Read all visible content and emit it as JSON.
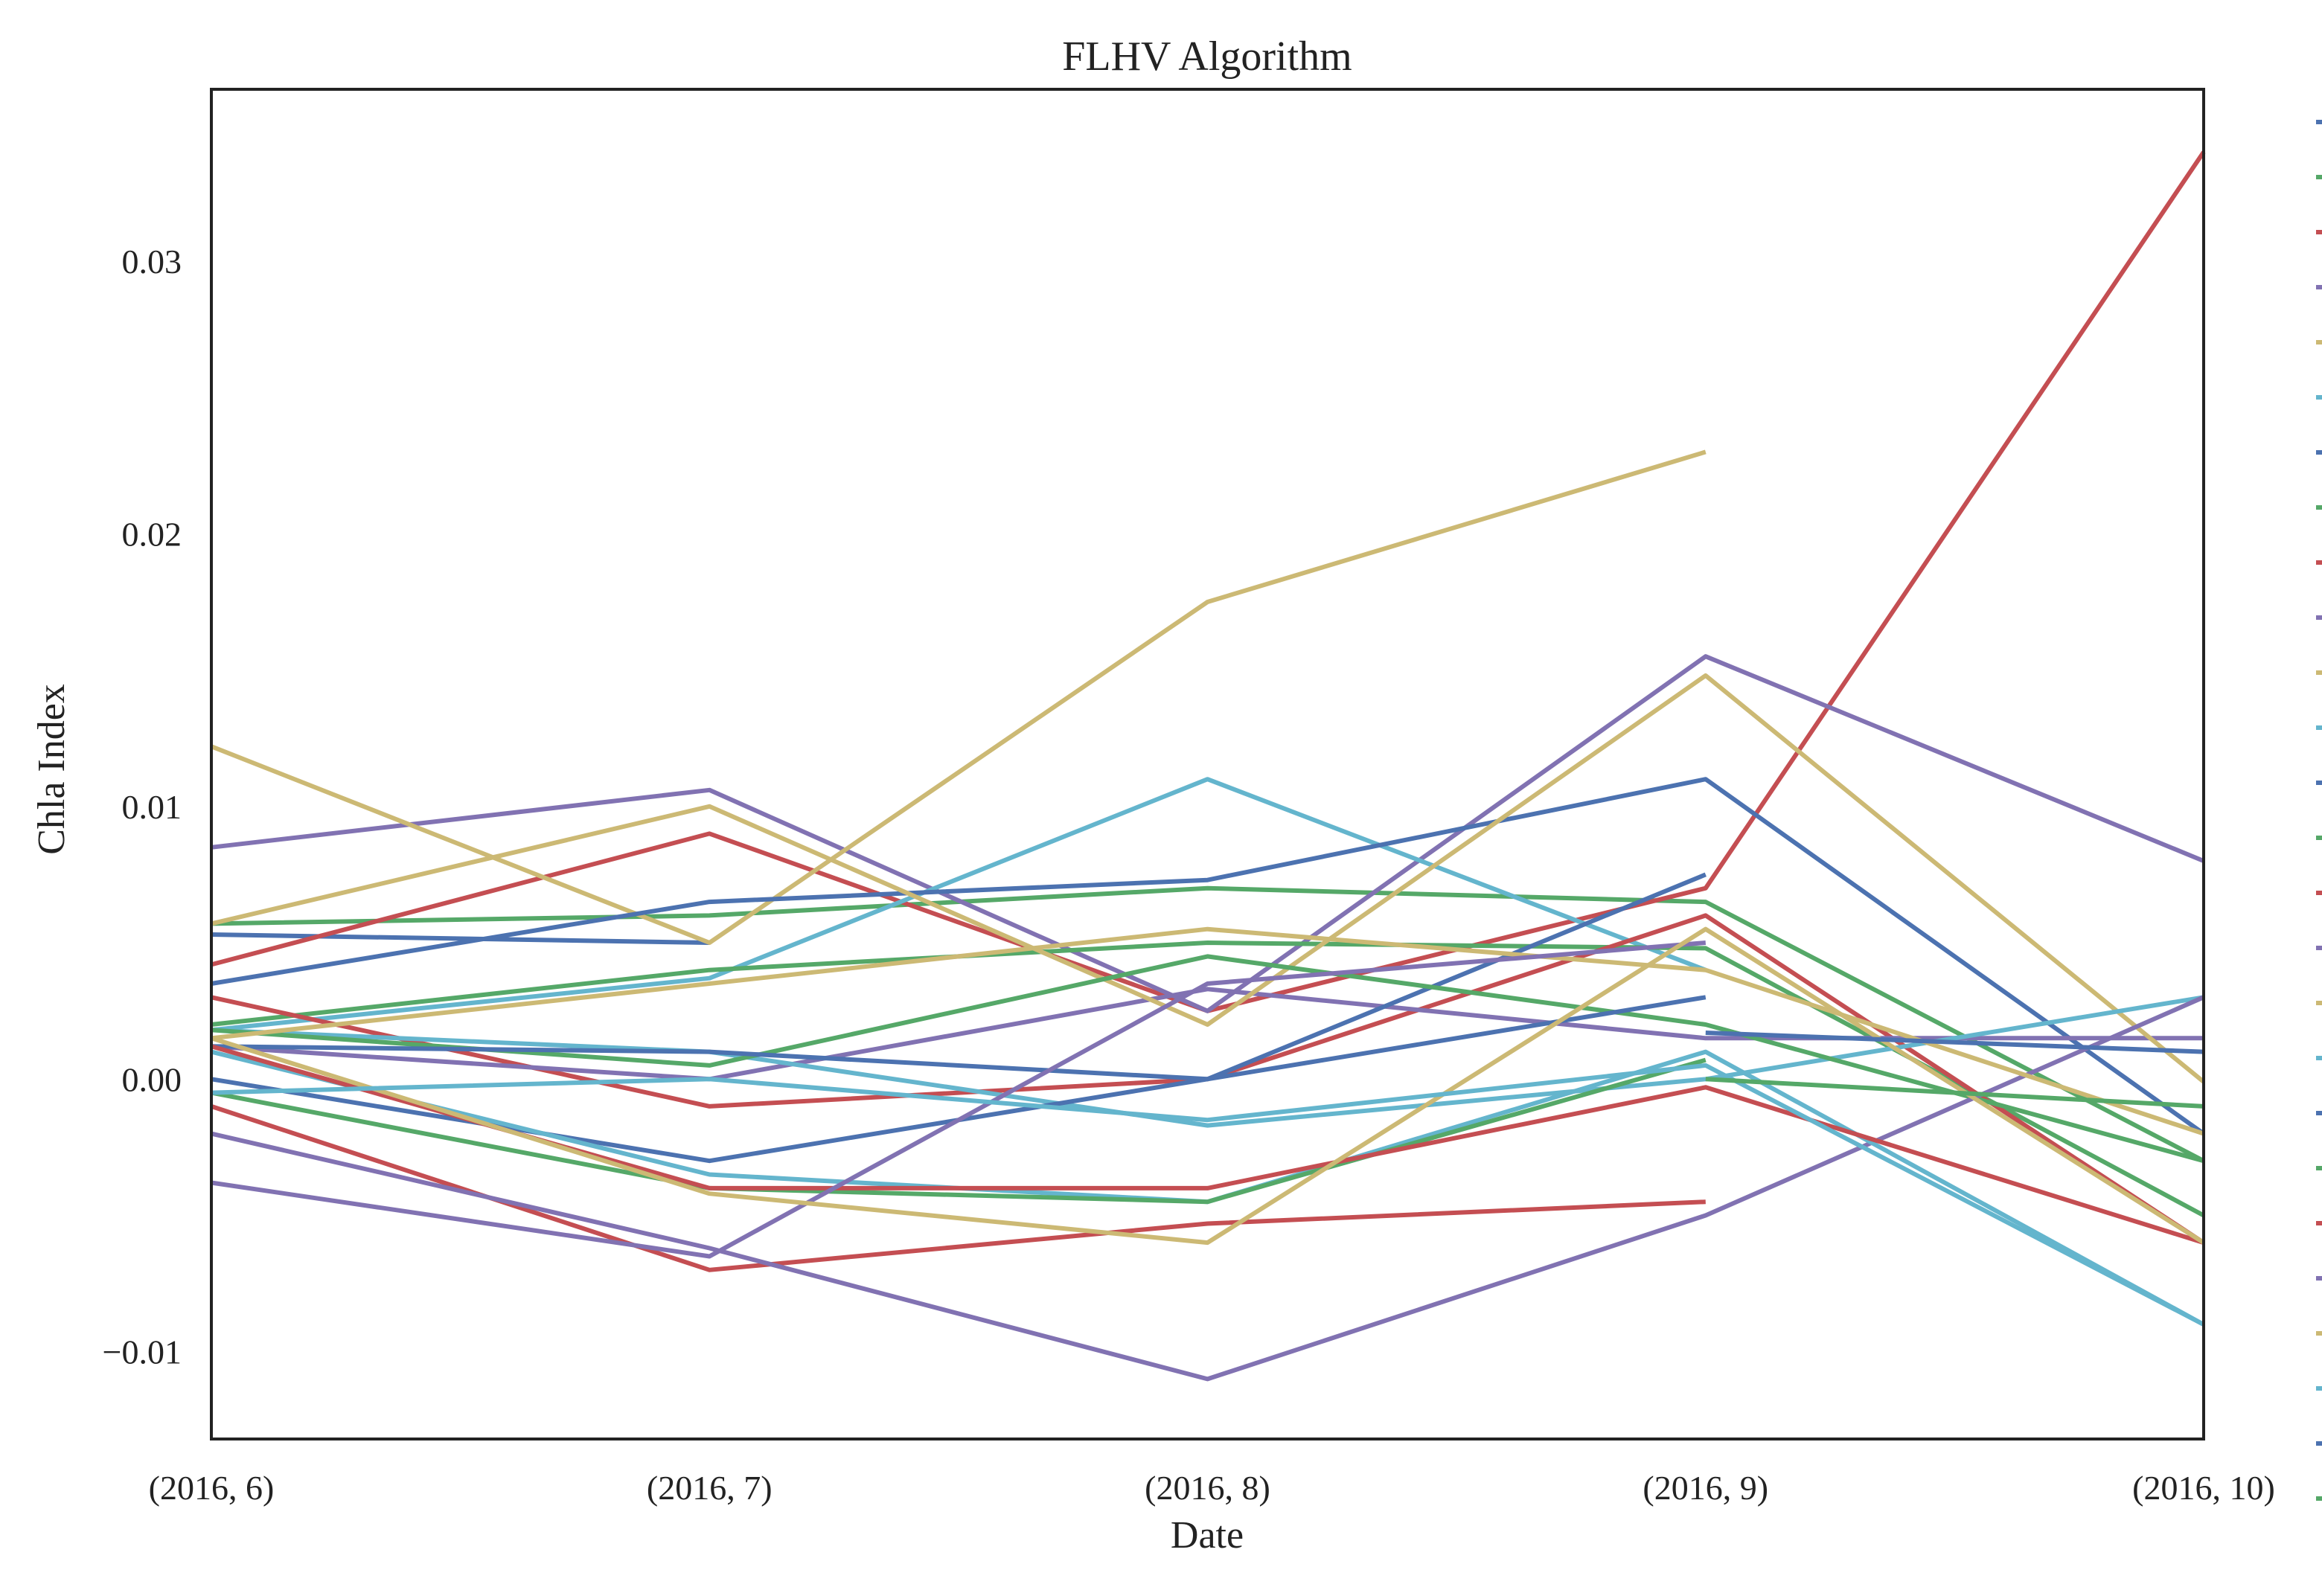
{
  "chart_data": {
    "type": "line",
    "title": "FLHV Algorithm",
    "xlabel": "Date",
    "ylabel": "Chla Index",
    "categories": [
      "(2016, 6)",
      "(2016, 7)",
      "(2016, 8)",
      "(2016, 9)",
      "(2016, 10)"
    ],
    "ylim": [
      -0.0132,
      0.0363
    ],
    "yticks": [
      -0.01,
      0.0,
      0.01,
      0.02,
      0.03
    ],
    "ytick_labels": [
      "−0.01",
      "0.00",
      "0.01",
      "0.02",
      "0.03"
    ],
    "grid": false,
    "legend": "right (series names cut off)",
    "palette": [
      "#4c72b0",
      "#55a868",
      "#c44e52",
      "#8172b2",
      "#ccb974",
      "#64b5cd"
    ],
    "series": [
      {
        "values": [
          0.0053,
          0.005,
          null,
          null,
          null
        ]
      },
      {
        "values": [
          0.0057,
          0.006,
          0.007,
          0.0065,
          -0.003
        ]
      },
      {
        "values": [
          0.0042,
          0.009,
          0.0025,
          0.007,
          0.034
        ]
      },
      {
        "values": [
          0.0085,
          0.0106,
          0.0025,
          0.0155,
          0.008
        ]
      },
      {
        "values": [
          0.0122,
          0.005,
          0.0175,
          0.023,
          null
        ]
      },
      {
        "values": [
          0.0018,
          0.0037,
          0.011,
          0.004,
          null
        ]
      },
      {
        "values": [
          0.0035,
          0.0065,
          0.0073,
          0.011,
          -0.002
        ]
      },
      {
        "values": [
          0.002,
          0.004,
          0.005,
          0.0048,
          -0.005
        ]
      },
      {
        "values": [
          0.003,
          -0.001,
          0.0,
          0.006,
          -0.006
        ]
      },
      {
        "values": [
          0.0012,
          0.0,
          0.0033,
          0.0015,
          0.0015
        ]
      },
      {
        "values": [
          0.0057,
          0.01,
          0.002,
          0.0148,
          -0.0001
        ]
      },
      {
        "values": [
          0.0018,
          0.001,
          -0.0017,
          0.0,
          0.003
        ]
      },
      {
        "values": [
          0.0,
          -0.003,
          0.0,
          0.0075,
          null
        ]
      },
      {
        "values": [
          0.0018,
          0.0005,
          0.0045,
          0.002,
          -0.003
        ]
      },
      {
        "values": [
          -0.001,
          -0.007,
          -0.0053,
          -0.0045,
          null
        ]
      },
      {
        "values": [
          -0.002,
          -0.0062,
          -0.011,
          -0.005,
          0.003
        ]
      },
      {
        "values": [
          0.0015,
          0.0035,
          0.0055,
          0.004,
          -0.002
        ]
      },
      {
        "values": [
          0.001,
          -0.0035,
          -0.0045,
          0.001,
          -0.009
        ]
      },
      {
        "values": [
          0.0012,
          0.001,
          0.0,
          0.003,
          null
        ]
      },
      {
        "values": [
          -0.0005,
          -0.004,
          -0.0045,
          0.0007,
          null
        ]
      },
      {
        "values": [
          0.0012,
          -0.004,
          -0.004,
          -0.0003,
          -0.006
        ]
      },
      {
        "values": [
          -0.0038,
          -0.0065,
          0.0035,
          0.005,
          null
        ]
      },
      {
        "values": [
          0.0015,
          -0.0042,
          -0.006,
          0.0055,
          -0.006
        ]
      },
      {
        "values": [
          -0.0005,
          0.0,
          -0.0015,
          0.0005,
          -0.009
        ]
      },
      {
        "values": [
          null,
          null,
          null,
          0.0017,
          0.001
        ]
      },
      {
        "values": [
          null,
          null,
          null,
          0.0,
          -0.001
        ]
      }
    ]
  }
}
